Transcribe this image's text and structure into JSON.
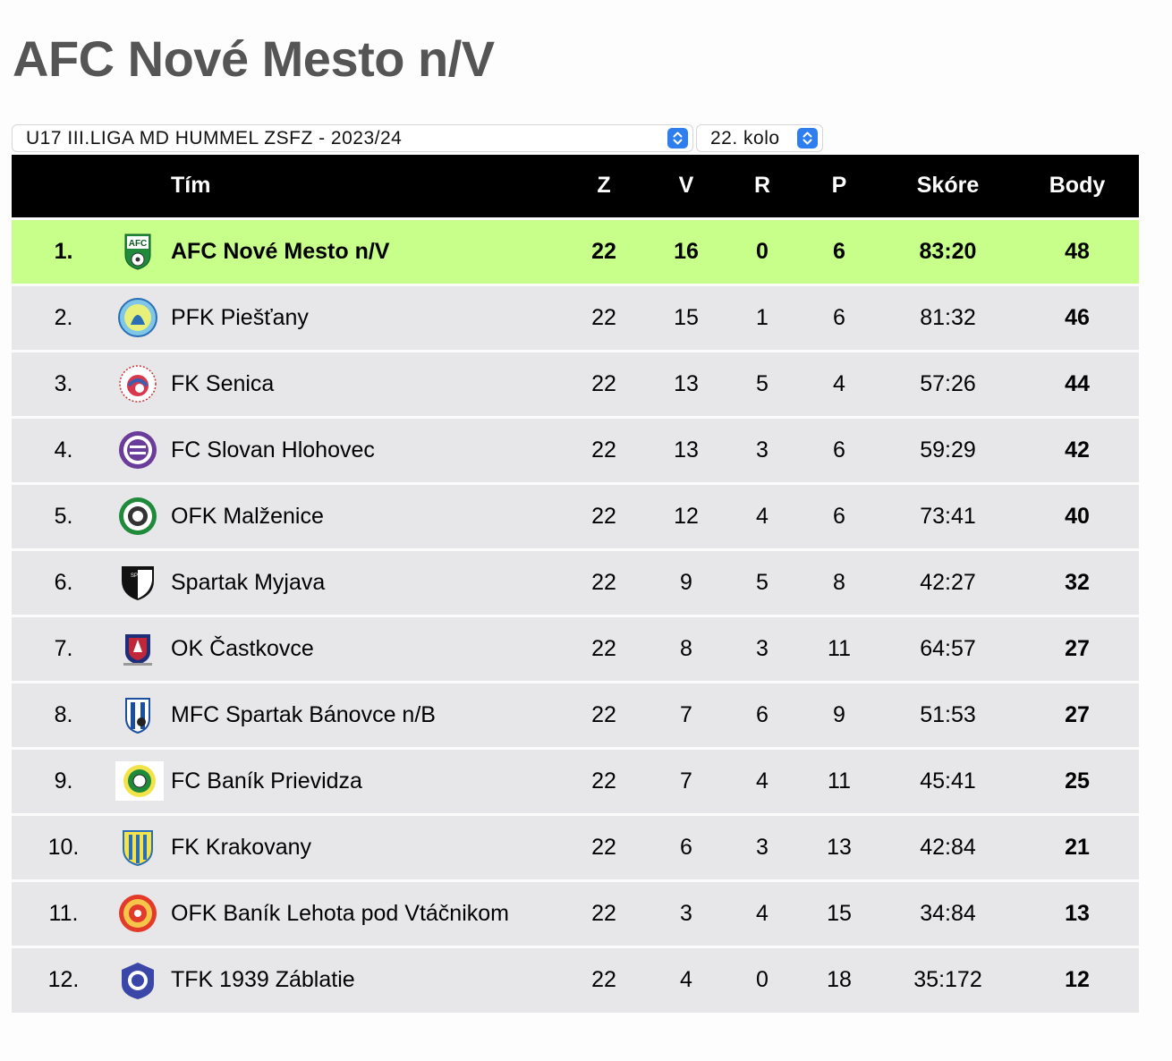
{
  "page": {
    "title": "AFC Nové Mesto n/V"
  },
  "filters": {
    "league": "U17 III.LIGA MD HUMMEL ZSFZ - 2023/24",
    "round": "22. kolo"
  },
  "table": {
    "headers": {
      "team": "Tím",
      "played": "Z",
      "won": "V",
      "drawn": "R",
      "lost": "P",
      "score": "Skóre",
      "points": "Body"
    },
    "rows": [
      {
        "rank": "1.",
        "team": "AFC Nové Mesto n/V",
        "logo": "afc-nove-mesto-logo-icon",
        "played": "22",
        "won": "16",
        "drawn": "0",
        "lost": "6",
        "score": "83:20",
        "points": "48"
      },
      {
        "rank": "2.",
        "team": "PFK Piešťany",
        "logo": "pfk-piestany-logo-icon",
        "played": "22",
        "won": "15",
        "drawn": "1",
        "lost": "6",
        "score": "81:32",
        "points": "46"
      },
      {
        "rank": "3.",
        "team": "FK Senica",
        "logo": "fk-senica-logo-icon",
        "played": "22",
        "won": "13",
        "drawn": "5",
        "lost": "4",
        "score": "57:26",
        "points": "44"
      },
      {
        "rank": "4.",
        "team": "FC Slovan Hlohovec",
        "logo": "fc-slovan-hlohovec-logo-icon",
        "played": "22",
        "won": "13",
        "drawn": "3",
        "lost": "6",
        "score": "59:29",
        "points": "42"
      },
      {
        "rank": "5.",
        "team": "OFK Malženice",
        "logo": "ofk-malzenice-logo-icon",
        "played": "22",
        "won": "12",
        "drawn": "4",
        "lost": "6",
        "score": "73:41",
        "points": "40"
      },
      {
        "rank": "6.",
        "team": "Spartak Myjava",
        "logo": "spartak-myjava-logo-icon",
        "played": "22",
        "won": "9",
        "drawn": "5",
        "lost": "8",
        "score": "42:27",
        "points": "32"
      },
      {
        "rank": "7.",
        "team": "OK Častkovce",
        "logo": "ok-castkovce-logo-icon",
        "played": "22",
        "won": "8",
        "drawn": "3",
        "lost": "11",
        "score": "64:57",
        "points": "27"
      },
      {
        "rank": "8.",
        "team": "MFC Spartak Bánovce n/B",
        "logo": "mfc-spartak-banovce-logo-icon",
        "played": "22",
        "won": "7",
        "drawn": "6",
        "lost": "9",
        "score": "51:53",
        "points": "27"
      },
      {
        "rank": "9.",
        "team": "FC Baník Prievidza",
        "logo": "fc-banik-prievidza-logo-icon",
        "played": "22",
        "won": "7",
        "drawn": "4",
        "lost": "11",
        "score": "45:41",
        "points": "25"
      },
      {
        "rank": "10.",
        "team": "FK Krakovany",
        "logo": "fk-krakovany-logo-icon",
        "played": "22",
        "won": "6",
        "drawn": "3",
        "lost": "13",
        "score": "42:84",
        "points": "21"
      },
      {
        "rank": "11.",
        "team": "OFK Baník Lehota pod Vtáčnikom",
        "logo": "ofk-banik-lehota-logo-icon",
        "played": "22",
        "won": "3",
        "drawn": "4",
        "lost": "15",
        "score": "34:84",
        "points": "13"
      },
      {
        "rank": "12.",
        "team": "TFK 1939 Záblatie",
        "logo": "tfk-zablatie-logo-icon",
        "played": "22",
        "won": "4",
        "drawn": "0",
        "lost": "18",
        "score": "35:172",
        "points": "12"
      }
    ]
  },
  "colors": {
    "header_bg": "#000000",
    "leader_bg": "#c8ff8a",
    "row_bg": "#e7e7e9",
    "title": "#555555",
    "select_accent": "#2f7ef0"
  }
}
